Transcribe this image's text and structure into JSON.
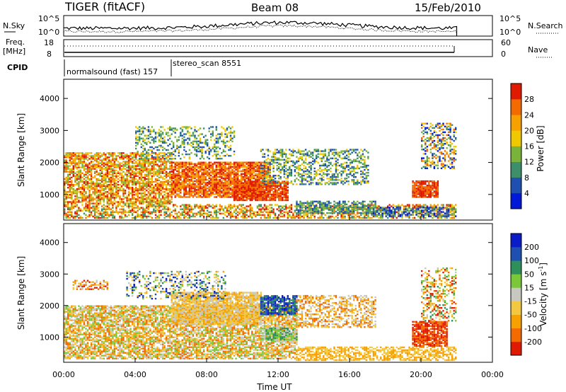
{
  "header": {
    "title": "TIGER (fitACF)",
    "beam": "Beam 08",
    "date": "15/Feb/2010"
  },
  "chart_data": [
    {
      "type": "line",
      "panel": "noise",
      "left_label": "N.Sky",
      "right_label": "N.Search",
      "left_ticks": [
        "10^5",
        "10^0"
      ],
      "right_ticks": [
        "10^5",
        "10^0"
      ],
      "series": [
        {
          "name": "N.Sky",
          "style": "solid"
        },
        {
          "name": "N.Search",
          "style": "dotted"
        }
      ]
    },
    {
      "type": "line",
      "panel": "frequency",
      "left_label_1": "Freq.",
      "left_label_2": "[MHz]",
      "right_label": "Nave",
      "left_ticks": [
        "18",
        "8"
      ],
      "right_ticks": [
        "60",
        "0"
      ],
      "series": [
        {
          "name": "Freq.",
          "style": "solid"
        },
        {
          "name": "Nave",
          "style": "dotted"
        }
      ]
    },
    {
      "type": "table",
      "panel": "cpid",
      "label": "CPID",
      "segments": [
        {
          "name": "normalsound (fast) 157",
          "start_h": 0.0,
          "end_h": 6.0
        },
        {
          "name": "stereo_scan 8551",
          "start_h": 6.0,
          "end_h": 22.0
        }
      ]
    },
    {
      "type": "heatmap",
      "panel": "power",
      "ylabel": "Slant Range [km]",
      "yticks": [
        1000,
        2000,
        3000,
        4000
      ],
      "ylim": [
        200,
        4600
      ],
      "xlim": [
        0,
        24
      ],
      "colorbar_label": "Power [dB]",
      "colorbar_ticks": [
        "4",
        "8",
        "12",
        "16",
        "20",
        "24",
        "28"
      ],
      "colorbar_colors": [
        "#0018d8",
        "#1f4fb0",
        "#3d8f6a",
        "#7ab33a",
        "#f0c800",
        "#f7a100",
        "#f36b00",
        "#e01a00"
      ]
    },
    {
      "type": "heatmap",
      "panel": "velocity",
      "ylabel": "Slant Range [km]",
      "xlabel": "Time UT",
      "yticks": [
        1000,
        2000,
        3000,
        4000
      ],
      "ylim": [
        200,
        4600
      ],
      "xlim": [
        0,
        24
      ],
      "xticks": [
        "00:00",
        "04:00",
        "08:00",
        "12:00",
        "16:00",
        "20:00",
        "00:00"
      ],
      "colorbar_label": "Velocity [m s",
      "colorbar_exp": "-1",
      "colorbar_close": "]",
      "colorbar_ticks": [
        "-200",
        "-100",
        "-50",
        "-15",
        "15",
        "50",
        "100",
        "200"
      ],
      "colorbar_colors": [
        "#e01a00",
        "#f36b00",
        "#f7a100",
        "#f2c840",
        "#c8c8c0",
        "#7ac83a",
        "#2f8f5a",
        "#1f4fb0",
        "#0a1cc8"
      ]
    }
  ]
}
